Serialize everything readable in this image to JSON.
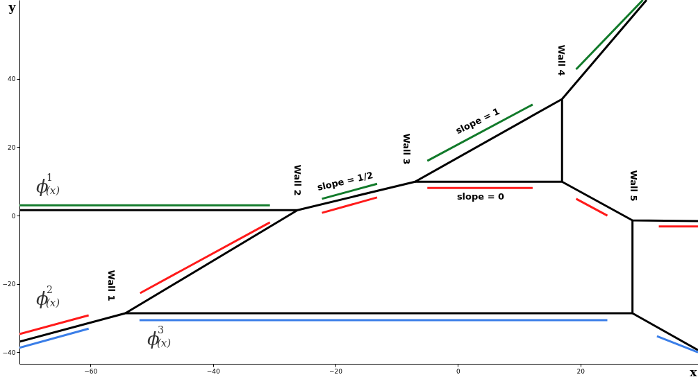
{
  "chart_data": {
    "type": "line",
    "xlabel": "x",
    "ylabel": "y",
    "xlim": [
      -71.6,
      39.2
    ],
    "ylim": [
      -43.4,
      63.1
    ],
    "xticks": [
      -60,
      -40,
      -20,
      0,
      20
    ],
    "yticks": [
      -40,
      -20,
      0,
      20,
      40
    ],
    "grid": false,
    "series": [
      {
        "color": "#000000",
        "x": [
          -71.6,
          -26.2,
          null,
          -71.6,
          -54.3,
          28.5,
          null,
          -54.3,
          -26.2,
          -7.0,
          17.0,
          30.8,
          null,
          -7.0,
          17.0,
          28.5,
          39.2,
          null,
          17.0,
          17.0,
          null,
          28.5,
          28.5,
          39.2
        ],
        "values": [
          1.6,
          1.6,
          null,
          -36.9,
          -28.6,
          -28.6,
          null,
          -28.6,
          1.6,
          9.9,
          34.1,
          63.1,
          null,
          9.9,
          9.9,
          -1.4,
          -1.6,
          null,
          9.9,
          34.1,
          null,
          -1.4,
          -28.6,
          -39.4
        ]
      },
      {
        "color": "#117a2a",
        "x": [
          -71.6,
          -30.7,
          null,
          -22.2,
          -13.2,
          null,
          -5.0,
          12.2,
          null,
          19.3,
          30.2
        ],
        "values": [
          3.0,
          3.0,
          null,
          4.9,
          9.3,
          null,
          16.0,
          32.5,
          null,
          42.8,
          63.1
        ]
      },
      {
        "color": "#ff1a1a",
        "x": [
          -71.6,
          -60.3,
          null,
          -51.9,
          -30.7,
          null,
          -22.2,
          -13.2,
          null,
          -5.0,
          12.2,
          null,
          19.3,
          24.4,
          null,
          32.8,
          39.2
        ],
        "values": [
          -34.7,
          -29.2,
          null,
          -22.7,
          -2.0,
          null,
          0.8,
          5.3,
          null,
          8.1,
          8.1,
          null,
          4.9,
          0.0,
          null,
          -3.2,
          -3.2
        ]
      },
      {
        "color": "#3a7ee8",
        "x": [
          -71.6,
          -60.3,
          null,
          -52.0,
          24.4,
          null,
          32.5,
          39.2
        ],
        "values": [
          -38.7,
          -33.1,
          null,
          -30.6,
          -30.6,
          null,
          -35.3,
          -40.0
        ]
      }
    ],
    "annotations": [
      "Wall 1",
      "Wall 2",
      "Wall 3",
      "Wall 4",
      "Wall 5",
      "slope = 1/2",
      "slope = 1",
      "slope = 0",
      "ϕ$^{1}$$_{(x)}$",
      "ϕ$^{2}$$_{(x)}$",
      "ϕ$^{3}$$_{(x)}$"
    ]
  }
}
